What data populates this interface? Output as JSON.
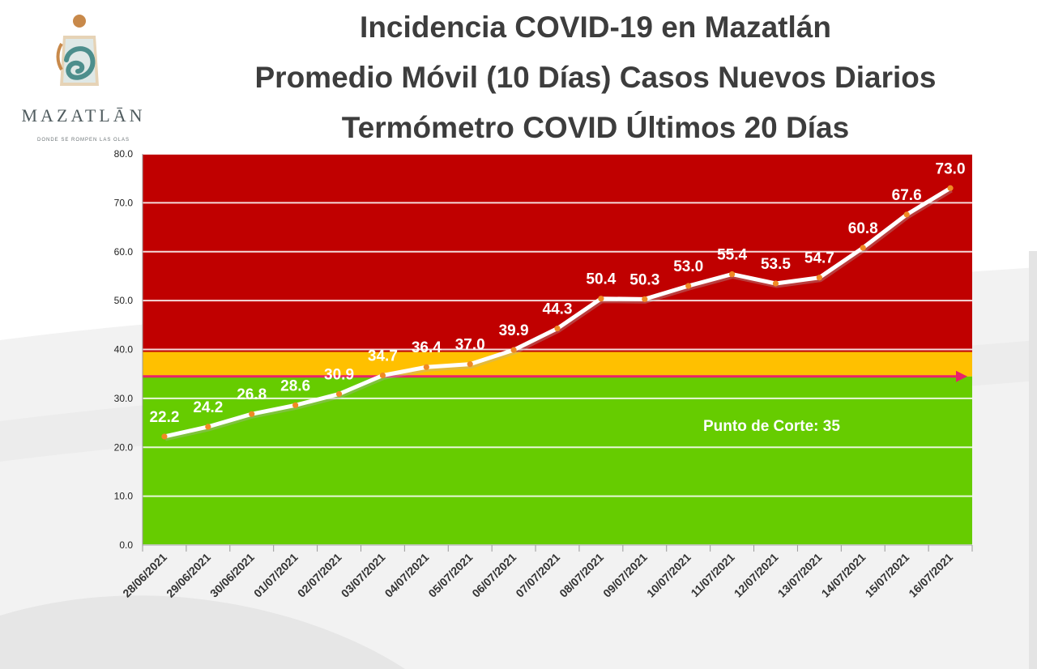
{
  "header": {
    "title_line1": "Incidencia COVID-19 en Mazatlán",
    "title_line2": "Promedio Móvil (10 Días) Casos Nuevos Diarios",
    "title_line3": "Termómetro COVID Últimos 20 Días"
  },
  "logo": {
    "name": "MAZATLĀN",
    "tagline": "DONDE SE ROMPEN LAS OLAS"
  },
  "colors": {
    "red_zone": "#c00000",
    "yellow_zone": "#ffc000",
    "green_zone": "#66cc00",
    "threshold_line": "#e8226a",
    "series_line": "#ffffff",
    "marker": "#f08a24"
  },
  "chart_data": {
    "type": "line",
    "title": "",
    "xlabel": "",
    "ylabel": "",
    "ylim": [
      0,
      80
    ],
    "yticks": [
      "0.0",
      "10.0",
      "20.0",
      "30.0",
      "40.0",
      "50.0",
      "60.0",
      "70.0",
      "80.0"
    ],
    "grid": true,
    "categories": [
      "28/06/2021",
      "29/06/2021",
      "30/06/2021",
      "01/07/2021",
      "02/07/2021",
      "03/07/2021",
      "04/07/2021",
      "05/07/2021",
      "06/07/2021",
      "07/07/2021",
      "08/07/2021",
      "09/07/2021",
      "10/07/2021",
      "11/07/2021",
      "12/07/2021",
      "13/07/2021",
      "14/07/2021",
      "15/07/2021",
      "16/07/2021"
    ],
    "values": [
      22.2,
      24.2,
      26.8,
      28.6,
      30.9,
      34.7,
      36.4,
      37.0,
      39.9,
      44.3,
      50.4,
      50.3,
      53.0,
      55.4,
      53.5,
      54.7,
      60.8,
      67.6,
      73.0
    ],
    "value_labels": [
      "22.2",
      "24.2",
      "26.8",
      "28.6",
      "30.9",
      "34.7",
      "36.4",
      "37.0",
      "39.9",
      "44.3",
      "50.4",
      "50.3",
      "53.0",
      "55.4",
      "53.5",
      "54.7",
      "60.8",
      "67.6",
      "73.0"
    ],
    "zones": [
      {
        "from": 0,
        "to": 34.5,
        "color": "green"
      },
      {
        "from": 34.5,
        "to": 39.5,
        "color": "yellow"
      },
      {
        "from": 39.5,
        "to": 80,
        "color": "red"
      }
    ],
    "threshold": {
      "value": 34.5,
      "label": "Punto de Corte: 35"
    }
  }
}
